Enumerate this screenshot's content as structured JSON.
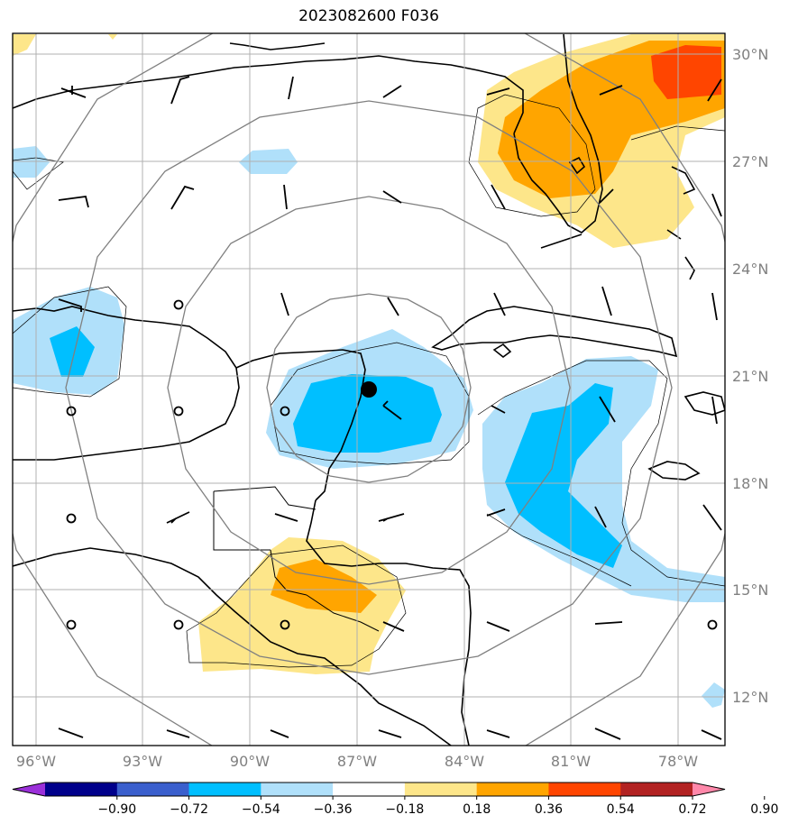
{
  "title": "2023082600 F036",
  "map": {
    "lon_labels": [
      "96°W",
      "93°W",
      "90°W",
      "87°W",
      "84°W",
      "81°W",
      "78°W"
    ],
    "lat_labels": [
      "30°N",
      "27°N",
      "24°N",
      "21°N",
      "18°N",
      "15°N",
      "12°N"
    ],
    "storm_center": {
      "lon": -86.8,
      "lat": 20.6
    }
  },
  "colorbar": {
    "levels": [
      "−0.90",
      "−0.72",
      "−0.54",
      "−0.36",
      "−0.18",
      "0.18",
      "0.36",
      "0.54",
      "0.72",
      "0.90"
    ],
    "colors": [
      "#9b30d9",
      "#00008b",
      "#3a5fcd",
      "#00bfff",
      "#b0e0fa",
      "#ffffff",
      "#fde68a",
      "#ffa500",
      "#ff4500",
      "#b22222",
      "#ff88aa"
    ]
  }
}
